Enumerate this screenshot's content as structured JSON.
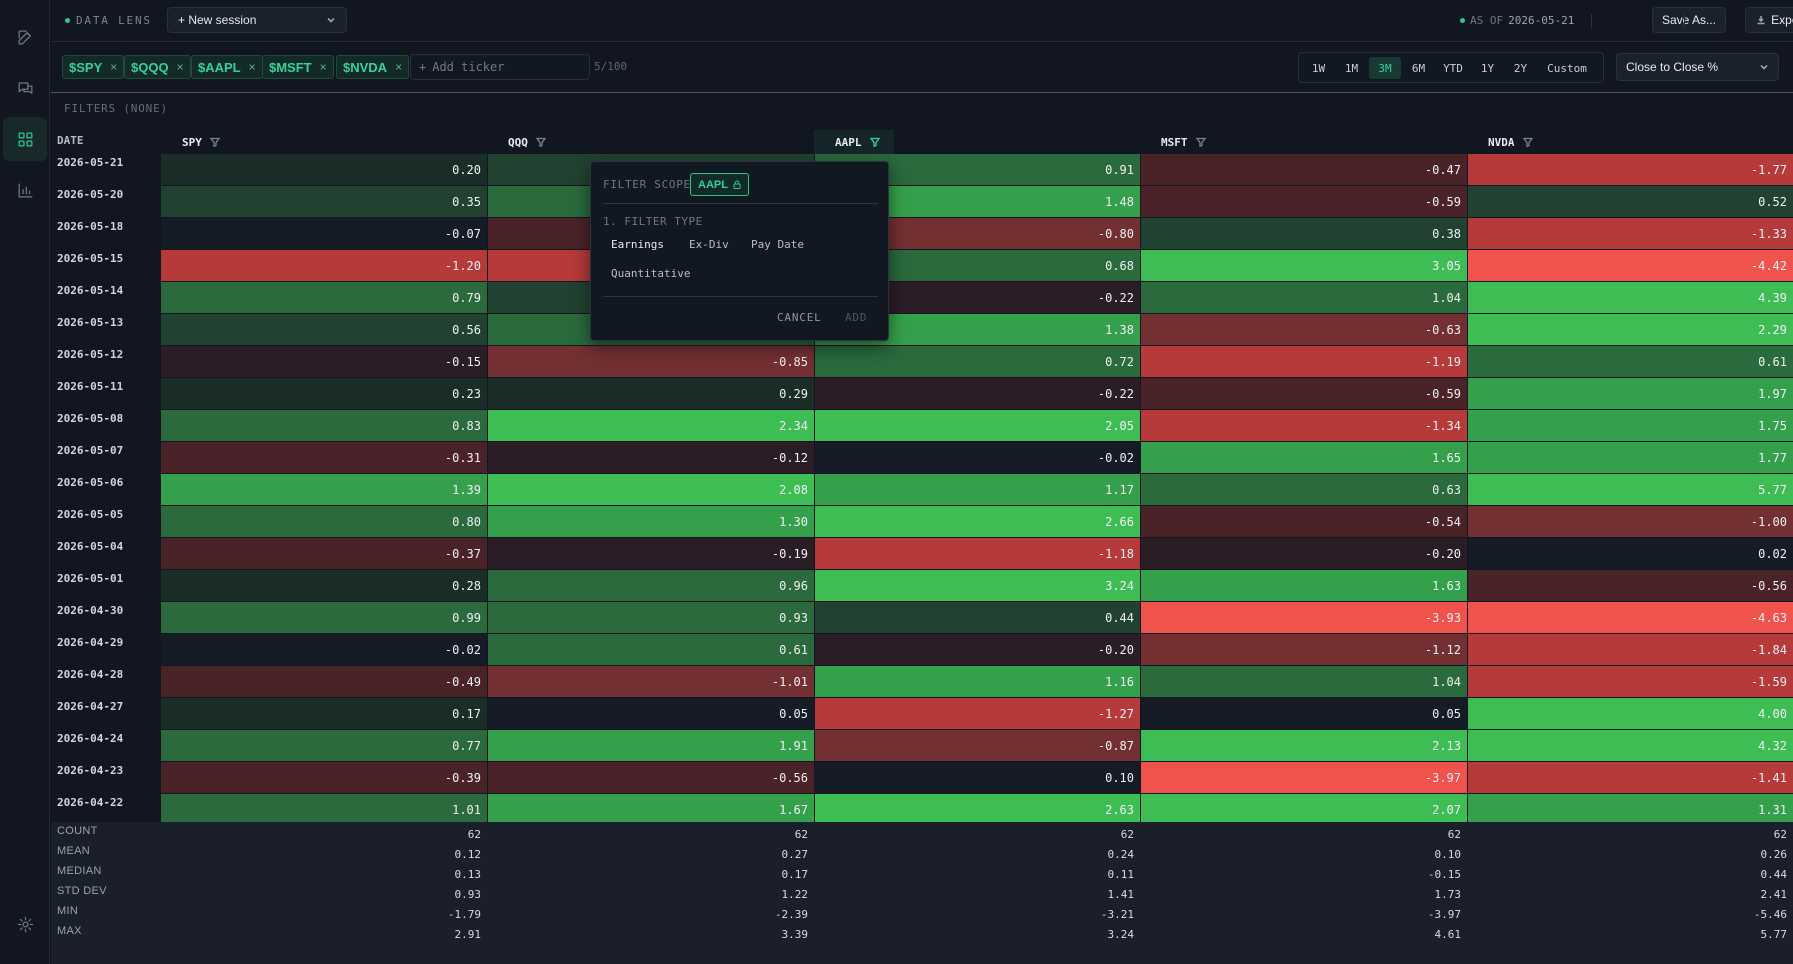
{
  "app": {
    "brand": "DATA LENS",
    "session_label": "+ New session",
    "asof_label": "AS OF",
    "asof_date": "2026-05-21",
    "save_label": "Save As...",
    "export_label": "Export"
  },
  "tickers": {
    "chips": [
      "$SPY",
      "$QQQ",
      "$AAPL",
      "$MSFT",
      "$NVDA"
    ],
    "remove_glyph": "×",
    "add_placeholder": "Add ticker",
    "count": "5/100"
  },
  "ranges": {
    "options": [
      "1W",
      "1M",
      "3M",
      "6M",
      "YTD",
      "1Y",
      "2Y",
      "Custom"
    ],
    "active": "3M"
  },
  "metric": {
    "selected": "Close to Close %"
  },
  "filters": {
    "label": "FILTERS (NONE)"
  },
  "table": {
    "date_header": "DATE",
    "columns": [
      "SPY",
      "QQQ",
      "AAPL",
      "MSFT",
      "NVDA"
    ],
    "filtered_column": "AAPL",
    "rows": [
      {
        "date": "2026-05-21",
        "values": [
          "0.20",
          "",
          "0.91",
          "-0.47",
          "-1.77"
        ]
      },
      {
        "date": "2026-05-20",
        "values": [
          "0.35",
          "",
          "1.48",
          "-0.59",
          "0.52"
        ]
      },
      {
        "date": "2026-05-18",
        "values": [
          "-0.07",
          "",
          "-0.80",
          "0.38",
          "-1.33"
        ]
      },
      {
        "date": "2026-05-15",
        "values": [
          "-1.20",
          "",
          "0.68",
          "3.05",
          "-4.42"
        ]
      },
      {
        "date": "2026-05-14",
        "values": [
          "0.79",
          "",
          "-0.22",
          "1.04",
          "4.39"
        ]
      },
      {
        "date": "2026-05-13",
        "values": [
          "0.56",
          "",
          "1.38",
          "-0.63",
          "2.29"
        ]
      },
      {
        "date": "2026-05-12",
        "values": [
          "-0.15",
          "-0.85",
          "0.72",
          "-1.19",
          "0.61"
        ]
      },
      {
        "date": "2026-05-11",
        "values": [
          "0.23",
          "0.29",
          "-0.22",
          "-0.59",
          "1.97"
        ]
      },
      {
        "date": "2026-05-08",
        "values": [
          "0.83",
          "2.34",
          "2.05",
          "-1.34",
          "1.75"
        ]
      },
      {
        "date": "2026-05-07",
        "values": [
          "-0.31",
          "-0.12",
          "-0.02",
          "1.65",
          "1.77"
        ]
      },
      {
        "date": "2026-05-06",
        "values": [
          "1.39",
          "2.08",
          "1.17",
          "0.63",
          "5.77"
        ]
      },
      {
        "date": "2026-05-05",
        "values": [
          "0.80",
          "1.30",
          "2.66",
          "-0.54",
          "-1.00"
        ]
      },
      {
        "date": "2026-05-04",
        "values": [
          "-0.37",
          "-0.19",
          "-1.18",
          "-0.20",
          "0.02"
        ]
      },
      {
        "date": "2026-05-01",
        "values": [
          "0.28",
          "0.96",
          "3.24",
          "1.63",
          "-0.56"
        ]
      },
      {
        "date": "2026-04-30",
        "values": [
          "0.99",
          "0.93",
          "0.44",
          "-3.93",
          "-4.63"
        ]
      },
      {
        "date": "2026-04-29",
        "values": [
          "-0.02",
          "0.61",
          "-0.20",
          "-1.12",
          "-1.84"
        ]
      },
      {
        "date": "2026-04-28",
        "values": [
          "-0.49",
          "-1.01",
          "1.16",
          "1.04",
          "-1.59"
        ]
      },
      {
        "date": "2026-04-27",
        "values": [
          "0.17",
          "0.05",
          "-1.27",
          "0.05",
          "4.00"
        ]
      },
      {
        "date": "2026-04-24",
        "values": [
          "0.77",
          "1.91",
          "-0.87",
          "2.13",
          "4.32"
        ]
      },
      {
        "date": "2026-04-23",
        "values": [
          "-0.39",
          "-0.56",
          "0.10",
          "-3.97",
          "-1.41"
        ]
      },
      {
        "date": "2026-04-22",
        "values": [
          "1.01",
          "1.67",
          "2.63",
          "2.07",
          "1.31"
        ]
      }
    ],
    "hidden_cell_shades": [
      "pos-2",
      "pos-3",
      "neg-2",
      "neg-4",
      "pos-2",
      "pos-3"
    ],
    "stats": [
      {
        "label": "COUNT",
        "values": [
          "62",
          "62",
          "62",
          "62",
          "62"
        ]
      },
      {
        "label": "MEAN",
        "values": [
          "0.12",
          "0.27",
          "0.24",
          "0.10",
          "0.26"
        ]
      },
      {
        "label": "MEDIAN",
        "values": [
          "0.13",
          "0.17",
          "0.11",
          "-0.15",
          "0.44"
        ]
      },
      {
        "label": "STD DEV",
        "values": [
          "0.93",
          "1.22",
          "1.41",
          "1.73",
          "2.41"
        ]
      },
      {
        "label": "MIN",
        "values": [
          "-1.79",
          "-2.39",
          "-3.21",
          "-3.97",
          "-5.46"
        ]
      },
      {
        "label": "MAX",
        "values": [
          "2.91",
          "3.39",
          "3.24",
          "4.61",
          "5.77"
        ]
      }
    ]
  },
  "popover": {
    "scope_label": "FILTER SCOPE",
    "scope_ticker": "AAPL",
    "step_label": "1. FILTER TYPE",
    "options": [
      "Earnings",
      "Ex-Div",
      "Pay Date",
      "Quantitative"
    ],
    "selected_option": "Earnings",
    "cancel_label": "CANCEL",
    "add_label": "ADD"
  },
  "colors": {
    "accent": "#2ec58e",
    "pos_strong": "#3fb950",
    "neg_strong": "#f85149",
    "neutral": "#141a24"
  }
}
